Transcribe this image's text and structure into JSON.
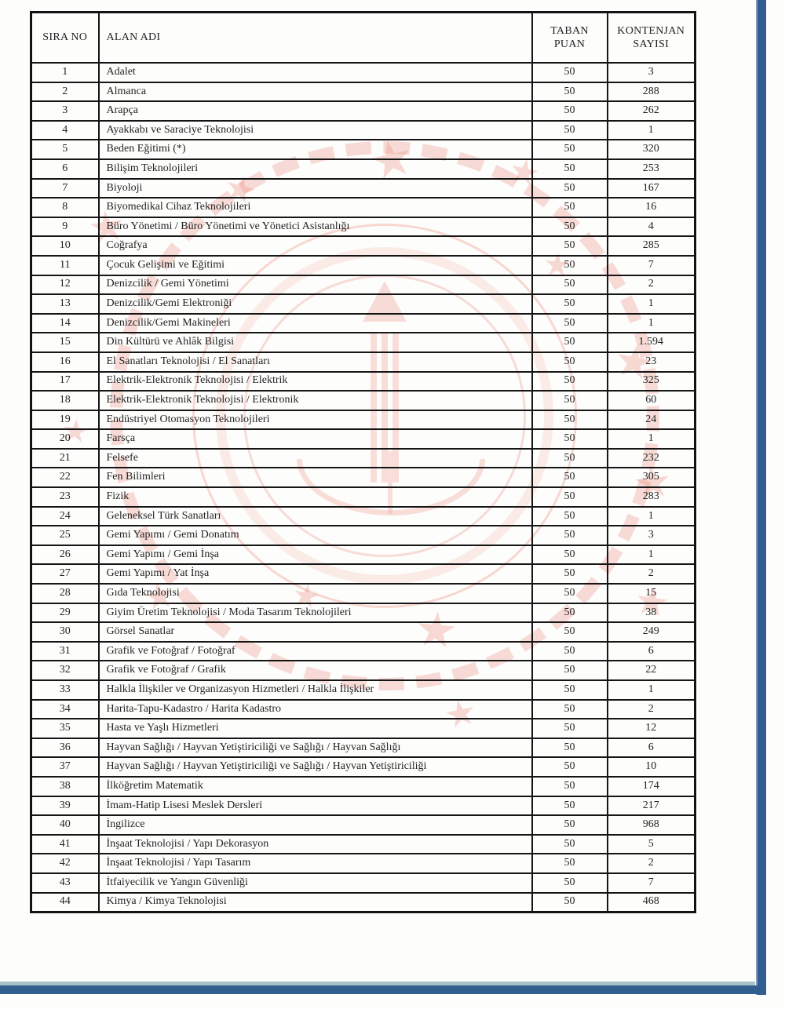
{
  "document": {
    "kind": "scanned-quota-table",
    "language": "tr"
  },
  "colors": {
    "watermark_pink": "#ec8d7e",
    "frame_dark_blue": "#335f90",
    "frame_light_blue": "#a9c0c8",
    "table_border": "#151515"
  },
  "watermark": {
    "name": "meb-ministry-emblem",
    "star_glyph": "★"
  },
  "table": {
    "columns": [
      "SIRA NO",
      "ALAN ADI",
      "TABAN PUAN",
      "KONTENJAN SAYISI"
    ],
    "rows": [
      [
        "1",
        "Adalet",
        "50",
        "3"
      ],
      [
        "2",
        "Almanca",
        "50",
        "288"
      ],
      [
        "3",
        "Arapça",
        "50",
        "262"
      ],
      [
        "4",
        "Ayakkabı ve Saraciye Teknolojisi",
        "50",
        "1"
      ],
      [
        "5",
        "Beden Eğitimi (*)",
        "50",
        "320"
      ],
      [
        "6",
        "Bilişim Teknolojileri",
        "50",
        "253"
      ],
      [
        "7",
        "Biyoloji",
        "50",
        "167"
      ],
      [
        "8",
        "Biyomedikal Cihaz Teknolojileri",
        "50",
        "16"
      ],
      [
        "9",
        "Büro Yönetimi / Büro Yönetimi ve Yönetici Asistanlığı",
        "50",
        "4"
      ],
      [
        "10",
        "Coğrafya",
        "50",
        "285"
      ],
      [
        "11",
        "Çocuk Gelişimi ve Eğitimi",
        "50",
        "7"
      ],
      [
        "12",
        "Denizcilik / Gemi Yönetimi",
        "50",
        "2"
      ],
      [
        "13",
        "Denizcilik/Gemi Elektroniği",
        "50",
        "1"
      ],
      [
        "14",
        "Denizcilik/Gemi Makineleri",
        "50",
        "1"
      ],
      [
        "15",
        "Din Kültürü ve Ahlâk Bilgisi",
        "50",
        "1.594"
      ],
      [
        "16",
        "El Sanatları Teknolojisi / El Sanatları",
        "50",
        "23"
      ],
      [
        "17",
        "Elektrik-Elektronik Teknolojisi / Elektrik",
        "50",
        "325"
      ],
      [
        "18",
        "Elektrik-Elektronik Teknolojisi / Elektronik",
        "50",
        "60"
      ],
      [
        "19",
        "Endüstriyel Otomasyon Teknolojileri",
        "50",
        "24"
      ],
      [
        "20",
        "Farsça",
        "50",
        "1"
      ],
      [
        "21",
        "Felsefe",
        "50",
        "232"
      ],
      [
        "22",
        "Fen Bilimleri",
        "50",
        "305"
      ],
      [
        "23",
        "Fizik",
        "50",
        "283"
      ],
      [
        "24",
        "Geleneksel Türk Sanatları",
        "50",
        "1"
      ],
      [
        "25",
        "Gemi Yapımı / Gemi Donatım",
        "50",
        "3"
      ],
      [
        "26",
        "Gemi Yapımı / Gemi İnşa",
        "50",
        "1"
      ],
      [
        "27",
        "Gemi Yapımı / Yat İnşa",
        "50",
        "2"
      ],
      [
        "28",
        "Gıda Teknolojisi",
        "50",
        "15"
      ],
      [
        "29",
        "Giyim Üretim Teknolojisi / Moda Tasarım Teknolojileri",
        "50",
        "38"
      ],
      [
        "30",
        "Görsel Sanatlar",
        "50",
        "249"
      ],
      [
        "31",
        "Grafik ve Fotoğraf / Fotoğraf",
        "50",
        "6"
      ],
      [
        "32",
        "Grafik ve Fotoğraf / Grafik",
        "50",
        "22"
      ],
      [
        "33",
        "Halkla İlişkiler ve Organizasyon Hizmetleri / Halkla İlişkiler",
        "50",
        "1"
      ],
      [
        "34",
        "Harita-Tapu-Kadastro / Harita Kadastro",
        "50",
        "2"
      ],
      [
        "35",
        "Hasta ve Yaşlı Hizmetleri",
        "50",
        "12"
      ],
      [
        "36",
        "Hayvan Sağlığı / Hayvan Yetiştiriciliği ve Sağlığı / Hayvan Sağlığı",
        "50",
        "6"
      ],
      [
        "37",
        "Hayvan Sağlığı / Hayvan Yetiştiriciliği ve Sağlığı / Hayvan Yetiştiriciliği",
        "50",
        "10"
      ],
      [
        "38",
        "İlköğretim Matematik",
        "50",
        "174"
      ],
      [
        "39",
        "İmam-Hatip Lisesi Meslek Dersleri",
        "50",
        "217"
      ],
      [
        "40",
        "İngilizce",
        "50",
        "968"
      ],
      [
        "41",
        "İnşaat Teknolojisi / Yapı Dekorasyon",
        "50",
        "5"
      ],
      [
        "42",
        "İnşaat Teknolojisi / Yapı Tasarım",
        "50",
        "2"
      ],
      [
        "43",
        "İtfaiyecilik ve Yangın Güvenliği",
        "50",
        "7"
      ],
      [
        "44",
        "Kimya / Kimya Teknolojisi",
        "50",
        "468"
      ]
    ]
  }
}
